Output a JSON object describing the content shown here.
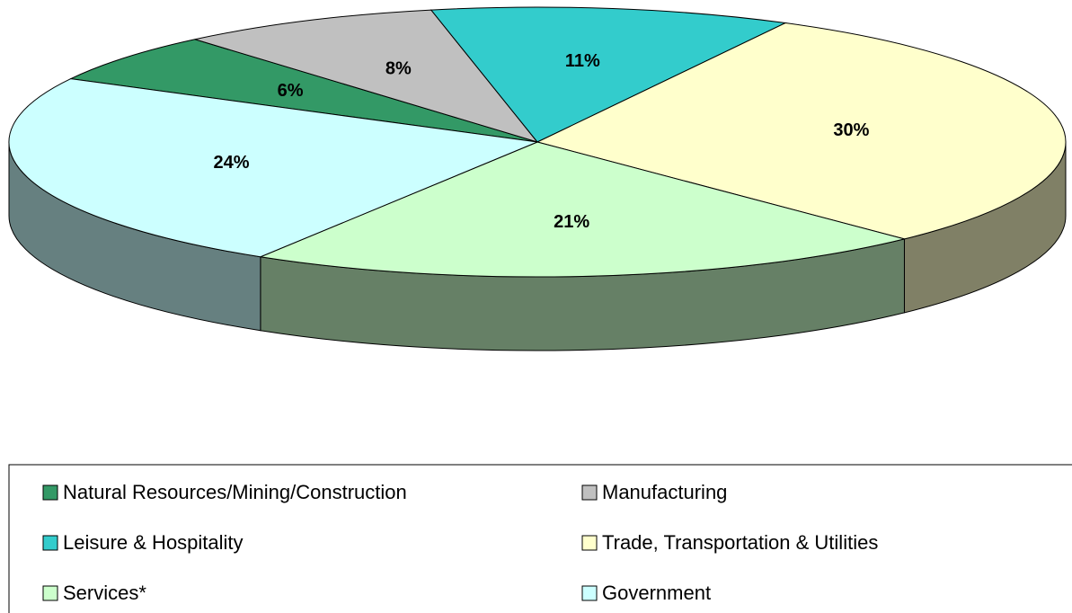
{
  "chart_data": {
    "type": "pie",
    "categories": [
      "Natural Resources/Mining/Construction",
      "Manufacturing",
      "Leisure & Hospitality",
      "Trade, Transportation & Utilities",
      "Services*",
      "Government"
    ],
    "values": [
      6,
      8,
      11,
      30,
      21,
      24
    ],
    "value_labels": [
      "6%",
      "8%",
      "11%",
      "30%",
      "21%",
      "24%"
    ],
    "colors": [
      "#339966",
      "#c0c0c0",
      "#33cccc",
      "#ffffcc",
      "#ccffcc",
      "#ccffff"
    ]
  }
}
